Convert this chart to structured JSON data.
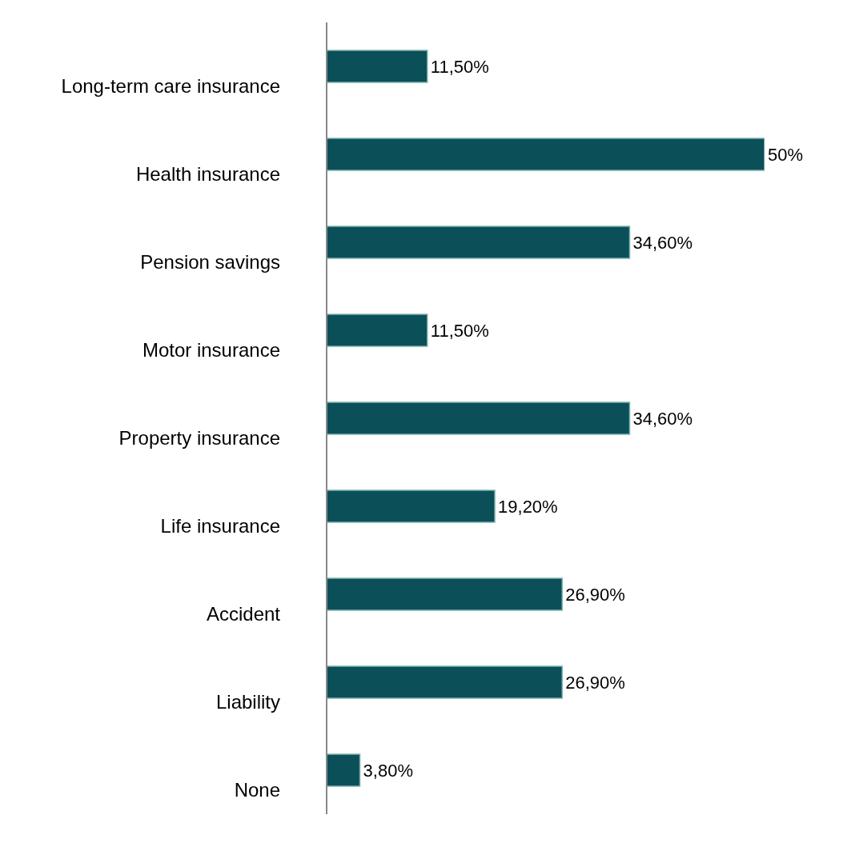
{
  "chart_data": {
    "type": "bar",
    "orientation": "horizontal",
    "categories": [
      "Long-term care insurance",
      "Health insurance",
      "Pension savings",
      "Motor insurance",
      "Property insurance",
      "Life insurance",
      "Accident",
      "Liability",
      "None"
    ],
    "values": [
      11.5,
      50,
      34.6,
      11.5,
      34.6,
      19.2,
      26.9,
      26.9,
      3.8
    ],
    "value_labels": [
      "11,50%",
      "50%",
      "34,60%",
      "11,50%",
      "34,60%",
      "19,20%",
      "26,90%",
      "26,90%",
      "3,80%"
    ],
    "color": "#0b4f59",
    "grid": false,
    "legend": false
  }
}
